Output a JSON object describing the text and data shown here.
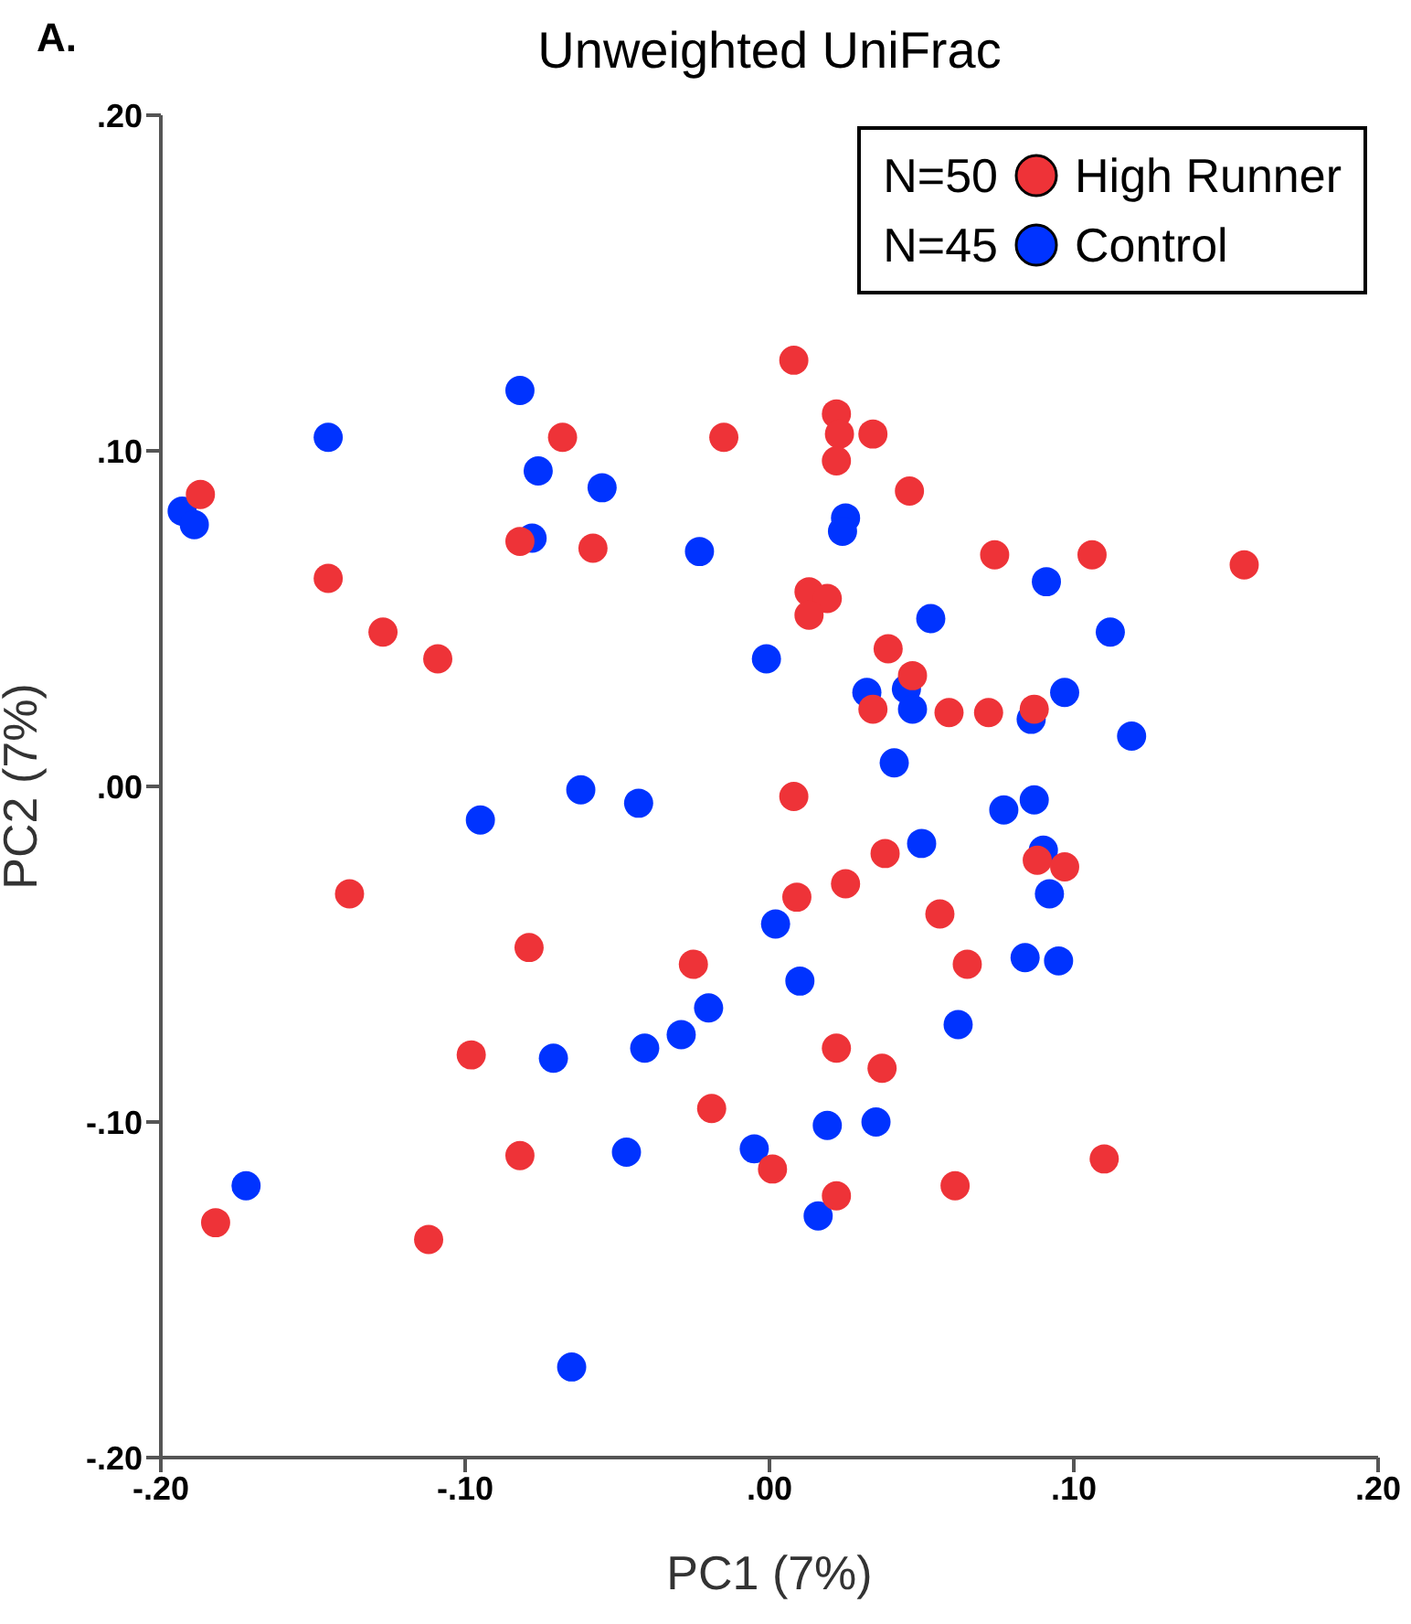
{
  "chart_data": {
    "type": "scatter",
    "title": "Unweighted UniFrac",
    "xlabel": "PC1 (7%)",
    "ylabel": "PC2 (7%)",
    "annotations": [
      "A.",
      "N=50",
      "N=45"
    ],
    "xlim": [
      -0.2,
      0.2
    ],
    "ylim": [
      -0.2,
      0.2
    ],
    "xticks": [
      {
        "value": -0.2,
        "label": "-.20"
      },
      {
        "value": -0.1,
        "label": "-.10"
      },
      {
        "value": 0,
        "label": ".00"
      },
      {
        "value": 0.1,
        "label": ".10"
      },
      {
        "value": 0.2,
        "label": ".20"
      }
    ],
    "yticks": [
      {
        "value": -0.2,
        "label": "-.20"
      },
      {
        "value": -0.1,
        "label": "-.10"
      },
      {
        "value": 0,
        "label": ".00"
      },
      {
        "value": 0.1,
        "label": ".10"
      },
      {
        "value": 0.2,
        "label": ".20"
      }
    ],
    "legend": "top right",
    "marker": "circle",
    "grid": false,
    "series": [
      {
        "name": "High Runner",
        "color": "#ee3338",
        "x": [
          -0.068,
          -0.015,
          -0.187,
          -0.082,
          -0.058,
          -0.145,
          -0.127,
          -0.109,
          0.008,
          0.022,
          0.023,
          0.034,
          0.022,
          0.046,
          0.074,
          0.106,
          0.156,
          0.013,
          0.019,
          0.013,
          0.039,
          0.047,
          0.034,
          0.059,
          0.072,
          0.087,
          0.008,
          -0.138,
          -0.079,
          -0.025,
          -0.098,
          -0.019,
          -0.082,
          0.001,
          -0.182,
          -0.112,
          0.038,
          0.025,
          0.009,
          0.056,
          0.088,
          0.097,
          0.065,
          0.022,
          0.037,
          0.022,
          0.061,
          0.11
        ],
        "values": [
          0.104,
          0.104,
          0.087,
          0.073,
          0.071,
          0.062,
          0.046,
          0.038,
          0.127,
          0.111,
          0.105,
          0.105,
          0.097,
          0.088,
          0.069,
          0.069,
          0.066,
          0.058,
          0.056,
          0.051,
          0.041,
          0.033,
          0.023,
          0.022,
          0.022,
          0.023,
          -0.003,
          -0.032,
          -0.048,
          -0.053,
          -0.08,
          -0.096,
          -0.11,
          -0.114,
          -0.13,
          -0.135,
          -0.02,
          -0.029,
          -0.033,
          -0.038,
          -0.022,
          -0.024,
          -0.053,
          -0.078,
          -0.084,
          -0.122,
          -0.119,
          -0.111
        ]
      },
      {
        "name": "Control",
        "color": "#0033ff",
        "x": [
          -0.082,
          -0.145,
          -0.193,
          -0.189,
          -0.076,
          -0.055,
          -0.078,
          -0.023,
          -0.001,
          -0.062,
          -0.043,
          0.025,
          0.024,
          0.091,
          0.053,
          0.112,
          0.032,
          0.045,
          0.047,
          0.097,
          0.086,
          0.119,
          0.041,
          0.077,
          0.087,
          -0.095,
          0.002,
          -0.02,
          -0.029,
          -0.041,
          -0.071,
          -0.005,
          -0.047,
          -0.172,
          -0.065,
          0.05,
          0.09,
          0.092,
          0.01,
          0.084,
          0.095,
          0.062,
          0.019,
          0.035,
          0.016
        ],
        "values": [
          0.118,
          0.104,
          0.082,
          0.078,
          0.094,
          0.089,
          0.074,
          0.07,
          0.038,
          -0.001,
          -0.005,
          0.08,
          0.076,
          0.061,
          0.05,
          0.046,
          0.028,
          0.029,
          0.023,
          0.028,
          0.02,
          0.015,
          0.007,
          -0.007,
          -0.004,
          -0.01,
          -0.041,
          -0.066,
          -0.074,
          -0.078,
          -0.081,
          -0.108,
          -0.109,
          -0.119,
          -0.173,
          -0.017,
          -0.019,
          -0.032,
          -0.058,
          -0.051,
          -0.052,
          -0.071,
          -0.101,
          -0.1,
          -0.128
        ]
      }
    ]
  }
}
